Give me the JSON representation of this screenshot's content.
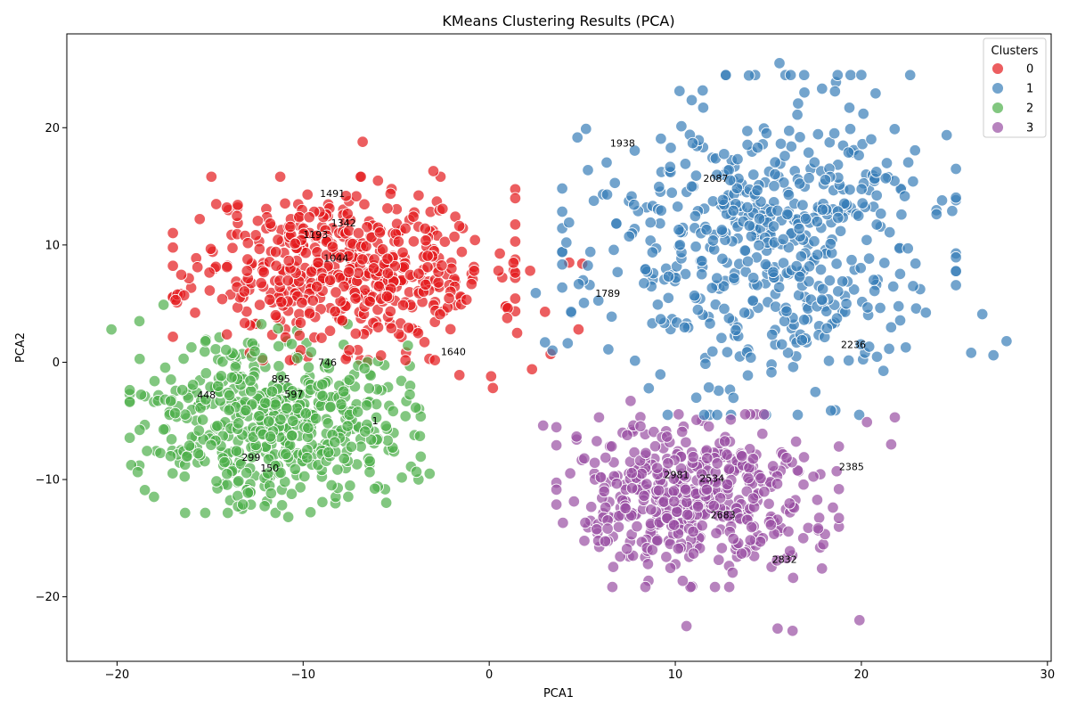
{
  "chart_data": {
    "type": "scatter",
    "title": "KMeans Clustering Results (PCA)",
    "xlabel": "PCA1",
    "ylabel": "PCA2",
    "xlim": [
      -22.7,
      30.2
    ],
    "ylim": [
      -25.5,
      28.0
    ],
    "xticks": [
      -20,
      -10,
      0,
      10,
      20,
      30
    ],
    "yticks": [
      -20,
      -10,
      0,
      10,
      20
    ],
    "grid": false,
    "legend": {
      "title": "Clusters",
      "location": "upper right"
    },
    "series": [
      {
        "name": "0",
        "color": "#e41a1c",
        "center": [
          -7.8,
          8.0
        ],
        "spread": [
          4.0,
          3.4
        ],
        "n": 520,
        "seed": 11
      },
      {
        "name": "1",
        "color": "#377eb8",
        "center": [
          14.5,
          10.0
        ],
        "spread": [
          4.6,
          6.3
        ],
        "n": 560,
        "seed": 23
      },
      {
        "name": "2",
        "color": "#4daf4a",
        "center": [
          -11.5,
          -4.8
        ],
        "spread": [
          3.4,
          3.5
        ],
        "n": 520,
        "seed": 37
      },
      {
        "name": "3",
        "color": "#984ea3",
        "center": [
          11.2,
          -11.8
        ],
        "spread": [
          3.3,
          3.2
        ],
        "n": 480,
        "seed": 51
      }
    ],
    "extra_points": [
      {
        "cluster": 0,
        "x": -1.5,
        "y": 5.5
      },
      {
        "cluster": 0,
        "x": 0.5,
        "y": 7.8
      },
      {
        "cluster": 0,
        "x": 2.2,
        "y": 7.8
      },
      {
        "cluster": 0,
        "x": 4.3,
        "y": 8.5
      },
      {
        "cluster": 0,
        "x": 5.0,
        "y": 8.4
      },
      {
        "cluster": 0,
        "x": 3.0,
        "y": 4.3
      },
      {
        "cluster": 0,
        "x": 2.3,
        "y": -0.6
      },
      {
        "cluster": 0,
        "x": 1.5,
        "y": 2.5
      },
      {
        "cluster": 0,
        "x": 3.3,
        "y": 0.7
      },
      {
        "cluster": 0,
        "x": 0.1,
        "y": -1.2
      },
      {
        "cluster": 0,
        "x": -1.6,
        "y": -1.1
      },
      {
        "cluster": 0,
        "x": 4.8,
        "y": 2.8
      },
      {
        "cluster": 0,
        "x": -3.0,
        "y": 16.3
      },
      {
        "cluster": 0,
        "x": -6.8,
        "y": 18.8
      },
      {
        "cluster": 0,
        "x": 0.2,
        "y": -2.2
      },
      {
        "cluster": 0,
        "x": -2.8,
        "y": 10.8
      },
      {
        "cluster": 1,
        "x": 3.0,
        "y": 1.7
      },
      {
        "cluster": 1,
        "x": 3.4,
        "y": 1.0
      },
      {
        "cluster": 1,
        "x": 4.4,
        "y": 4.3
      },
      {
        "cluster": 1,
        "x": 2.5,
        "y": 5.9
      },
      {
        "cluster": 1,
        "x": 5.2,
        "y": 19.9
      },
      {
        "cluster": 1,
        "x": 6.4,
        "y": 1.1
      },
      {
        "cluster": 1,
        "x": 27.8,
        "y": 1.8
      },
      {
        "cluster": 1,
        "x": 27.1,
        "y": 0.6
      },
      {
        "cluster": 1,
        "x": 25.9,
        "y": 0.8
      },
      {
        "cluster": 1,
        "x": 15.6,
        "y": 25.5
      },
      {
        "cluster": 1,
        "x": 20.0,
        "y": 24.5
      },
      {
        "cluster": 1,
        "x": 26.5,
        "y": 4.1
      },
      {
        "cluster": 2,
        "x": -20.3,
        "y": 2.8
      },
      {
        "cluster": 2,
        "x": -18.8,
        "y": 3.5
      },
      {
        "cluster": 2,
        "x": -17.5,
        "y": 4.9
      },
      {
        "cluster": 2,
        "x": -18.5,
        "y": -2.9
      },
      {
        "cluster": 2,
        "x": -3.2,
        "y": -9.5
      },
      {
        "cluster": 2,
        "x": -3.8,
        "y": -10.0
      },
      {
        "cluster": 2,
        "x": -4.5,
        "y": -4.6
      },
      {
        "cluster": 2,
        "x": -4.2,
        "y": -8.9
      },
      {
        "cluster": 2,
        "x": -10.8,
        "y": -13.2
      },
      {
        "cluster": 2,
        "x": -13.5,
        "y": -12.3
      },
      {
        "cluster": 3,
        "x": 2.9,
        "y": -5.4
      },
      {
        "cluster": 3,
        "x": 5.9,
        "y": -4.7
      },
      {
        "cluster": 3,
        "x": 7.6,
        "y": -3.3
      },
      {
        "cluster": 3,
        "x": 10.6,
        "y": -22.5
      },
      {
        "cluster": 3,
        "x": 15.5,
        "y": -22.7
      },
      {
        "cluster": 3,
        "x": 16.3,
        "y": -22.9
      },
      {
        "cluster": 3,
        "x": 19.9,
        "y": -22.0
      },
      {
        "cluster": 3,
        "x": 21.6,
        "y": -7.0
      },
      {
        "cluster": 3,
        "x": 20.3,
        "y": -5.1
      },
      {
        "cluster": 3,
        "x": 21.8,
        "y": -4.7
      }
    ],
    "annotations": [
      {
        "text": "1491",
        "x": -9.1,
        "y": 14.1
      },
      {
        "text": "1342",
        "x": -8.5,
        "y": 11.6
      },
      {
        "text": "1193",
        "x": -10.0,
        "y": 10.6
      },
      {
        "text": "1044",
        "x": -8.9,
        "y": 8.6
      },
      {
        "text": "746",
        "x": -9.2,
        "y": -0.3
      },
      {
        "text": "1640",
        "x": -2.6,
        "y": 0.6
      },
      {
        "text": "895",
        "x": -11.7,
        "y": -1.7
      },
      {
        "text": "448",
        "x": -15.7,
        "y": -3.1
      },
      {
        "text": "597",
        "x": -11.0,
        "y": -3.0
      },
      {
        "text": "1",
        "x": -6.3,
        "y": -5.3
      },
      {
        "text": "299",
        "x": -13.3,
        "y": -8.4
      },
      {
        "text": "150",
        "x": -12.3,
        "y": -9.3
      },
      {
        "text": "1938",
        "x": 6.5,
        "y": 18.4
      },
      {
        "text": "2087",
        "x": 11.5,
        "y": 15.4
      },
      {
        "text": "1789",
        "x": 5.7,
        "y": 5.6
      },
      {
        "text": "2236",
        "x": 18.9,
        "y": 1.2
      },
      {
        "text": "2981",
        "x": 9.4,
        "y": -9.9
      },
      {
        "text": "2534",
        "x": 11.3,
        "y": -10.2
      },
      {
        "text": "2385",
        "x": 18.8,
        "y": -9.2
      },
      {
        "text": "2683",
        "x": 11.9,
        "y": -13.3
      },
      {
        "text": "2832",
        "x": 15.2,
        "y": -17.1
      }
    ]
  }
}
